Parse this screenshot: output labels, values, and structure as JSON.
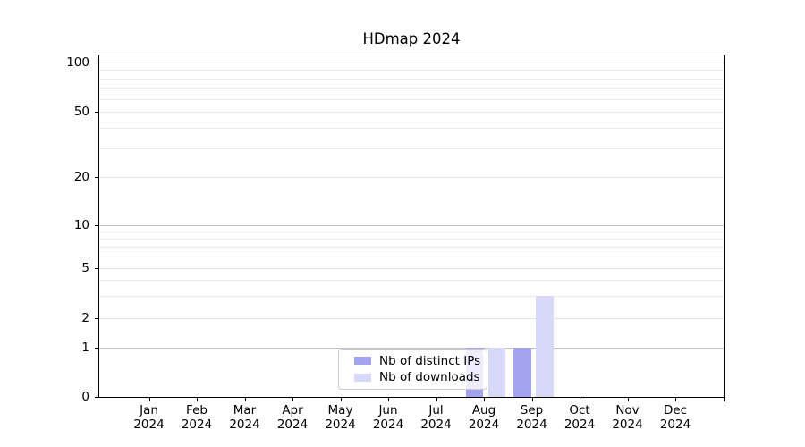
{
  "title": "HDmap 2024",
  "chart_data": {
    "type": "bar",
    "title": "HDmap 2024",
    "categories": [
      "Jan",
      "Feb",
      "Mar",
      "Apr",
      "May",
      "Jun",
      "Jul",
      "Aug",
      "Sep",
      "Oct",
      "Nov",
      "Dec"
    ],
    "year": "2024",
    "series": [
      {
        "name": "Nb of distinct IPs",
        "color": "#a3a3f0",
        "values": [
          0,
          0,
          0,
          0,
          0,
          0,
          0,
          1,
          1,
          0,
          0,
          0
        ]
      },
      {
        "name": "Nb of downloads",
        "color": "#d8d8f8",
        "values": [
          0,
          0,
          0,
          0,
          0,
          0,
          0,
          1,
          3,
          0,
          0,
          0
        ]
      }
    ],
    "yscale": "symlog",
    "ylim": [
      0,
      112
    ],
    "yticks": [
      0,
      1,
      2,
      5,
      10,
      20,
      50,
      100
    ],
    "major_gridline_values": [
      1,
      10,
      100
    ],
    "labeled_gridline_values": [
      2,
      5,
      20,
      50
    ],
    "minor_gridline_values": [
      3,
      4,
      6,
      7,
      8,
      9,
      30,
      40,
      60,
      70,
      80,
      90
    ],
    "grid": true,
    "legend": {
      "position": "inside-bottom-center",
      "entries": [
        {
          "label": "Nb of distinct IPs",
          "color": "#a3a3f0"
        },
        {
          "label": "Nb of downloads",
          "color": "#d8d8f8"
        }
      ]
    },
    "axis_colors": {
      "spine": "#000000",
      "major_grid": "#c3c3c3",
      "minor_grid": "#ebebeb"
    }
  }
}
